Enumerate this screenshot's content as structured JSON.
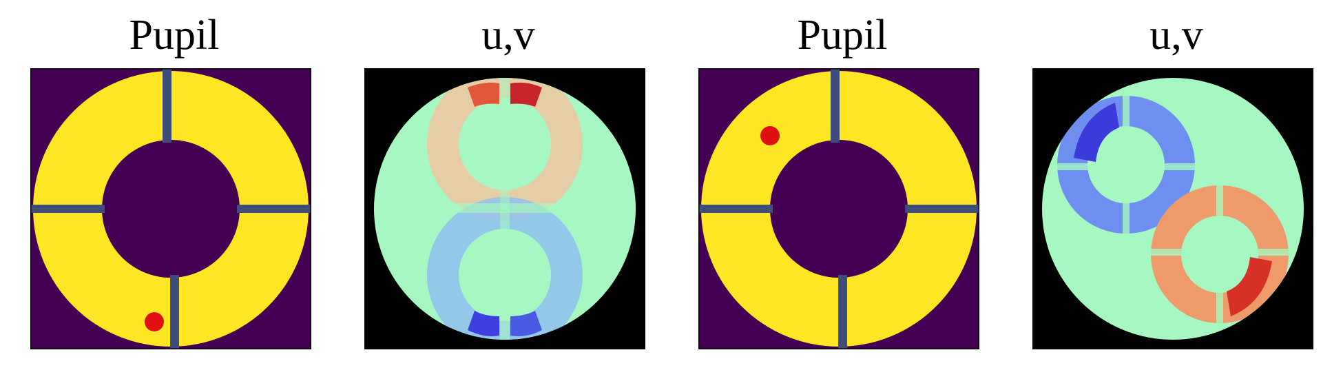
{
  "figure": {
    "panels": [
      {
        "title": "Pupil",
        "kind": "pupil",
        "marker_segment": "lower-left"
      },
      {
        "title": "u,v",
        "kind": "uv",
        "pattern": "vertical"
      },
      {
        "title": "Pupil",
        "kind": "pupil",
        "marker_segment": "upper-left"
      },
      {
        "title": "u,v",
        "kind": "uv",
        "pattern": "diagonal"
      }
    ]
  },
  "colors": {
    "pupil_background": "#440154",
    "pupil_fill": "#fde725",
    "marker": "#e11010",
    "uv_background": "#000000",
    "uv_base": "#a6f7c1",
    "uv_positive": "#d73027",
    "uv_negative": "#3b3bdc"
  }
}
